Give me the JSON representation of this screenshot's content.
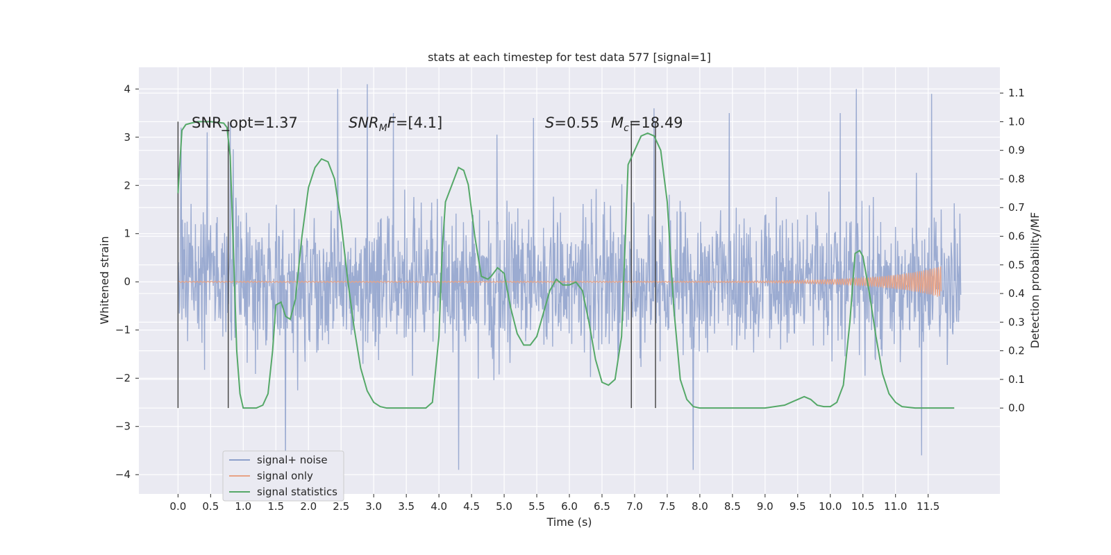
{
  "chart_data": {
    "type": "line",
    "title": "stats at each timestep for test data 577 [signal=1]",
    "xlabel": "Time (s)",
    "ylabel": "Whitened strain",
    "ylabel_right": "Detection probability/MF",
    "xlim": [
      -0.6,
      12.6
    ],
    "ylim": [
      -4.4,
      4.45
    ],
    "ylim_right": [
      -0.3,
      1.19
    ],
    "x_ticks": [
      "0.0",
      "0.5",
      "1.0",
      "1.5",
      "2.0",
      "2.5",
      "3.0",
      "3.5",
      "4.0",
      "4.5",
      "5.0",
      "5.5",
      "6.0",
      "6.5",
      "7.0",
      "7.5",
      "8.0",
      "8.5",
      "9.0",
      "9.5",
      "10.0",
      "10.5",
      "11.0",
      "11.5"
    ],
    "y_ticks": [
      "4",
      "3",
      "2",
      "1",
      "0",
      "−1",
      "−2",
      "−3",
      "−4"
    ],
    "y_ticks_right": [
      "1.1",
      "1.0",
      "0.9",
      "0.8",
      "0.7",
      "0.6",
      "0.5",
      "0.4",
      "0.3",
      "0.2",
      "0.1",
      "0.0"
    ],
    "annotations": {
      "snr_opt": "SNR_opt=1.37",
      "snr_mf_main": "SNR",
      "snr_mf_sub": "M",
      "snr_mf_rest": "F=[4.1]",
      "s_main": "S",
      "s_rest": "=0.55",
      "mc_main": "M",
      "mc_sub": "c",
      "mc_rest": "=18.49"
    },
    "vertical_markers": [
      0.0,
      0.77,
      6.95,
      7.32
    ],
    "series": [
      {
        "name": "signal+ noise",
        "color": "#8da0cb",
        "x_range": [
          0.0,
          12.0
        ],
        "envelope_typical": 2.3,
        "envelope_peaks": [
          [
            0.05,
            3.2
          ],
          [
            0.45,
            3.1
          ],
          [
            0.8,
            3.3
          ],
          [
            2.45,
            4.0
          ],
          [
            2.9,
            4.1
          ],
          [
            3.3,
            3.5
          ],
          [
            5.45,
            3.4
          ],
          [
            7.3,
            3.6
          ],
          [
            8.45,
            3.5
          ],
          [
            10.15,
            3.5
          ],
          [
            10.4,
            4.0
          ],
          [
            11.55,
            3.9
          ],
          [
            1.65,
            -3.9
          ],
          [
            4.3,
            -3.9
          ],
          [
            7.9,
            -3.9
          ],
          [
            11.4,
            -3.6
          ]
        ]
      },
      {
        "name": "signal only",
        "color": "#e8a285",
        "x_range": [
          0.0,
          11.7
        ],
        "chirp_amplitude_end": 0.32
      },
      {
        "name": "signal statistics",
        "color": "#55a868",
        "x": [
          0.0,
          0.06,
          0.12,
          0.2,
          0.3,
          0.5,
          0.7,
          0.75,
          0.8,
          0.85,
          0.9,
          0.95,
          1.0,
          1.1,
          1.2,
          1.3,
          1.38,
          1.45,
          1.5,
          1.58,
          1.65,
          1.72,
          1.8,
          1.9,
          2.0,
          2.1,
          2.2,
          2.3,
          2.4,
          2.5,
          2.6,
          2.7,
          2.8,
          2.9,
          3.0,
          3.1,
          3.2,
          3.4,
          3.6,
          3.8,
          3.9,
          4.0,
          4.05,
          4.1,
          4.2,
          4.3,
          4.38,
          4.45,
          4.55,
          4.65,
          4.75,
          4.8,
          4.9,
          5.0,
          5.1,
          5.2,
          5.3,
          5.4,
          5.5,
          5.6,
          5.7,
          5.8,
          5.9,
          6.0,
          6.1,
          6.2,
          6.3,
          6.4,
          6.5,
          6.6,
          6.7,
          6.8,
          6.9,
          7.0,
          7.1,
          7.2,
          7.3,
          7.4,
          7.5,
          7.6,
          7.7,
          7.8,
          7.9,
          8.0,
          8.5,
          9.0,
          9.3,
          9.5,
          9.6,
          9.7,
          9.8,
          9.9,
          10.0,
          10.1,
          10.2,
          10.3,
          10.38,
          10.45,
          10.5,
          10.6,
          10.7,
          10.8,
          10.9,
          11.0,
          11.1,
          11.3,
          11.6,
          11.9
        ],
        "y": [
          0.75,
          0.97,
          0.99,
          0.995,
          1.0,
          1.0,
          0.995,
          0.98,
          0.88,
          0.55,
          0.2,
          0.05,
          0.0,
          0.0,
          0.0,
          0.01,
          0.05,
          0.2,
          0.36,
          0.37,
          0.32,
          0.31,
          0.38,
          0.6,
          0.77,
          0.84,
          0.87,
          0.86,
          0.8,
          0.65,
          0.45,
          0.28,
          0.14,
          0.06,
          0.02,
          0.005,
          0.0,
          0.0,
          0.0,
          0.0,
          0.02,
          0.25,
          0.55,
          0.72,
          0.78,
          0.84,
          0.83,
          0.78,
          0.6,
          0.46,
          0.45,
          0.46,
          0.49,
          0.47,
          0.35,
          0.26,
          0.22,
          0.22,
          0.25,
          0.33,
          0.41,
          0.45,
          0.43,
          0.43,
          0.44,
          0.41,
          0.3,
          0.17,
          0.09,
          0.08,
          0.1,
          0.25,
          0.85,
          0.9,
          0.95,
          0.96,
          0.95,
          0.9,
          0.72,
          0.35,
          0.1,
          0.03,
          0.005,
          0.0,
          0.0,
          0.0,
          0.01,
          0.03,
          0.04,
          0.03,
          0.01,
          0.005,
          0.005,
          0.02,
          0.08,
          0.3,
          0.54,
          0.55,
          0.53,
          0.4,
          0.25,
          0.12,
          0.05,
          0.02,
          0.005,
          0.0,
          0.0,
          0.0
        ]
      }
    ],
    "legend": {
      "placement": "lower-left",
      "items": [
        "signal+ noise",
        "signal only",
        "signal statistics"
      ]
    },
    "grid": true
  }
}
